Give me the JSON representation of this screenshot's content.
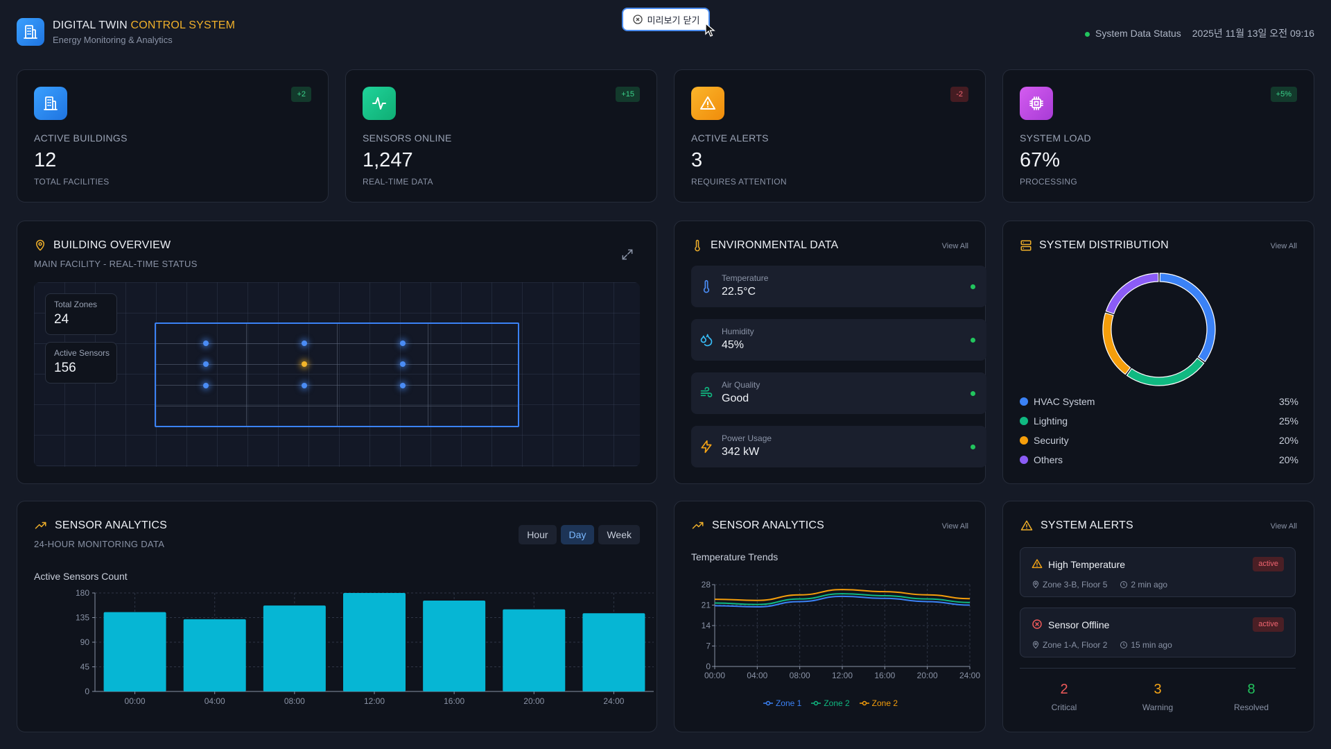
{
  "header": {
    "title_main": "DIGITAL TWIN ",
    "title_accent": "CONTROL SYSTEM",
    "subtitle": "Energy Monitoring & Analytics",
    "status_label": "System Data Status",
    "datetime": "2025년 11월 13일 오전 09:16",
    "preview_close": "미리보기 닫기"
  },
  "stats": [
    {
      "label": "ACTIVE BUILDINGS",
      "value": "12",
      "sub": "TOTAL FACILITIES",
      "badge": "+2",
      "icon": "building-icon",
      "color": "#2d8ef5"
    },
    {
      "label": "SENSORS ONLINE",
      "value": "1,247",
      "sub": "REAL-TIME DATA",
      "badge": "+15",
      "icon": "activity-icon",
      "color": "#17c38a"
    },
    {
      "label": "ACTIVE ALERTS",
      "value": "3",
      "sub": "REQUIRES ATTENTION",
      "badge": "-2",
      "icon": "warning-icon",
      "color": "#f5a416"
    },
    {
      "label": "SYSTEM LOAD",
      "value": "67%",
      "sub": "PROCESSING",
      "badge": "+5%",
      "icon": "cpu-icon",
      "color": "#c04ee0"
    }
  ],
  "building_overview": {
    "title": "BUILDING OVERVIEW",
    "subtitle": "MAIN FACILITY - REAL-TIME STATUS",
    "total_zones_label": "Total Zones",
    "total_zones": "24",
    "active_sensors_label": "Active Sensors",
    "active_sensors": "156",
    "sensor_states": [
      "normal",
      "normal",
      "normal",
      "normal",
      "warning",
      "normal",
      "normal",
      "normal",
      "normal"
    ]
  },
  "environmental": {
    "title": "ENVIRONMENTAL DATA",
    "view_all": "View All",
    "items": [
      {
        "label": "Temperature",
        "value": "22.5°C",
        "icon": "thermometer-icon"
      },
      {
        "label": "Humidity",
        "value": "45%",
        "icon": "droplets-icon"
      },
      {
        "label": "Air Quality",
        "value": "Good",
        "icon": "wind-icon"
      },
      {
        "label": "Power Usage",
        "value": "342 kW",
        "icon": "bolt-icon"
      }
    ]
  },
  "distribution": {
    "title": "SYSTEM DISTRIBUTION",
    "view_all": "View All",
    "items": [
      {
        "name": "HVAC System",
        "pct": "35%",
        "value": 35,
        "color": "#3b82f6"
      },
      {
        "name": "Lighting",
        "pct": "25%",
        "value": 25,
        "color": "#10b981"
      },
      {
        "name": "Security",
        "pct": "20%",
        "value": 20,
        "color": "#f59e0b"
      },
      {
        "name": "Others",
        "pct": "20%",
        "value": 20,
        "color": "#8b5cf6"
      }
    ]
  },
  "sensor_analytics": {
    "title": "SENSOR ANALYTICS",
    "subtitle": "24-HOUR MONITORING DATA",
    "tabs": [
      "Hour",
      "Day",
      "Week"
    ],
    "active_tab": "Day",
    "chart_label": "Active Sensors Count"
  },
  "temp_trends": {
    "title": "SENSOR ANALYTICS",
    "view_all": "View All",
    "chart_label": "Temperature Trends"
  },
  "alerts": {
    "title": "SYSTEM ALERTS",
    "view_all": "View All",
    "items": [
      {
        "title": "High Temperature",
        "status": "active",
        "location": "Zone 3-B, Floor 5",
        "time": "2 min ago",
        "icon": "warning-icon"
      },
      {
        "title": "Sensor Offline",
        "status": "active",
        "location": "Zone 1-A, Floor 2",
        "time": "15 min ago",
        "icon": "x-circle-icon"
      }
    ],
    "summary": [
      {
        "value": "2",
        "label": "Critical",
        "color": "#f05a5a"
      },
      {
        "value": "3",
        "label": "Warning",
        "color": "#f5a416"
      },
      {
        "value": "8",
        "label": "Resolved",
        "color": "#22c55e"
      }
    ]
  },
  "chart_data": [
    {
      "type": "bar",
      "categories": [
        "00:00",
        "04:00",
        "08:00",
        "12:00",
        "16:00",
        "20:00",
        "24:00"
      ],
      "values": [
        145,
        132,
        157,
        180,
        166,
        150,
        143
      ],
      "ylabel": "",
      "yticks": [
        0,
        45,
        90,
        135,
        180
      ],
      "ylim": [
        0,
        180
      ],
      "color": "#06b6d4",
      "grid": true
    },
    {
      "type": "line",
      "x": [
        "00:00",
        "04:00",
        "08:00",
        "12:00",
        "16:00",
        "20:00",
        "24:00"
      ],
      "yticks": [
        0,
        7,
        14,
        21,
        28
      ],
      "ylim": [
        0,
        28
      ],
      "grid": true,
      "series": [
        {
          "name": "Zone 1",
          "values": [
            20.8,
            20.4,
            22.2,
            24.0,
            23.3,
            22.2,
            21.0
          ],
          "color": "#3b82f6"
        },
        {
          "name": "Zone 2",
          "values": [
            21.7,
            21.2,
            23.1,
            24.9,
            24.2,
            23.1,
            21.9
          ],
          "color": "#10b981"
        },
        {
          "name": "Zone 2",
          "values": [
            23.0,
            22.6,
            24.5,
            26.3,
            25.6,
            24.5,
            23.2
          ],
          "color": "#f59e0b"
        }
      ]
    }
  ]
}
